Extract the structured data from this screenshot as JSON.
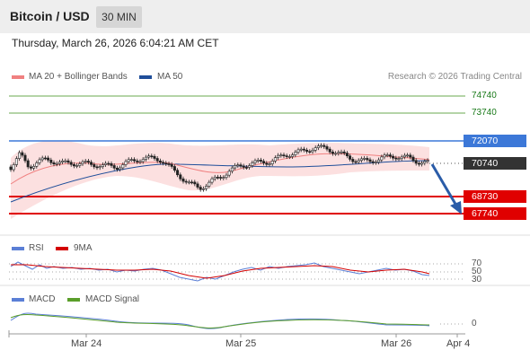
{
  "header": {
    "pair": "Bitcoin / USD",
    "timeframe": "30 MIN"
  },
  "timestamp": "Thursday, March 26, 2026 6:04:21 AM CET",
  "legend": {
    "ma20": "MA 20 + Bollinger Bands",
    "ma50": "MA 50",
    "credit": "Research © 2026 Trading Central"
  },
  "levels": {
    "r2": "74740",
    "r1": "73740",
    "pivot": "72070",
    "last": "70740",
    "s1": "68730",
    "s2": "67740"
  },
  "rsi": {
    "label": "RSI",
    "ma_label": "9MA",
    "upper": "70",
    "mid": "50",
    "lower": "30"
  },
  "macd": {
    "label": "MACD",
    "signal_label": "MACD Signal",
    "zero": "0"
  },
  "xaxis": {
    "t1": "Mar 24",
    "t2": "Mar 25",
    "t3": "Mar 26",
    "t4": "Apr 4"
  },
  "colors": {
    "pivot": "#3c78d8",
    "support": "#e00000",
    "last": "#333333",
    "resistance": "#6aa84f",
    "ma20": "#f08080",
    "ma50": "#1f4e9a",
    "arrow": "#2a5ca8"
  },
  "icons": {
    "forecast": "down-arrow-icon"
  }
}
